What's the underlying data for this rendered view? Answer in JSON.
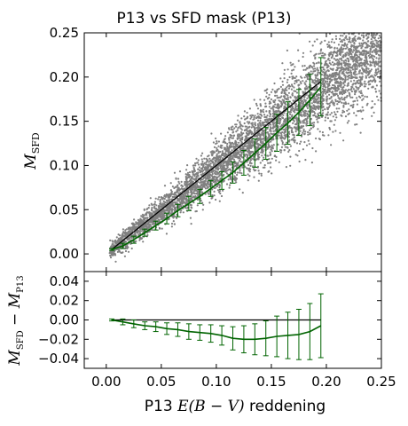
{
  "chart_data": [
    {
      "type": "scatter",
      "title": "P13 vs SFD mask (P13)",
      "xlabel": "",
      "ylabel_parts": [
        "M",
        "SFD"
      ],
      "xlim": [
        -0.02,
        0.25
      ],
      "ylim": [
        -0.02,
        0.25
      ],
      "x_ticks": [
        "0.00",
        "0.05",
        "0.10",
        "0.15",
        "0.20",
        "0.25"
      ],
      "x_tick_values": [
        0.0,
        0.05,
        0.1,
        0.15,
        0.2,
        0.25
      ],
      "y_ticks": [
        "0.00",
        "0.05",
        "0.10",
        "0.15",
        "0.20",
        "0.25"
      ],
      "y_tick_values": [
        0.0,
        0.05,
        0.1,
        0.15,
        0.2,
        0.25
      ],
      "x_tick_labels_shown": false,
      "scatter_color": "#808080",
      "reference_line": {
        "color": "#000000",
        "x": [
          0.005,
          0.195
        ],
        "y": [
          0.005,
          0.195
        ]
      },
      "binned_series": {
        "color": "#006400",
        "x": [
          0.005,
          0.015,
          0.025,
          0.035,
          0.045,
          0.055,
          0.065,
          0.075,
          0.085,
          0.095,
          0.105,
          0.115,
          0.125,
          0.135,
          0.145,
          0.155,
          0.165,
          0.175,
          0.185,
          0.195
        ],
        "y": [
          0.005,
          0.009,
          0.016,
          0.024,
          0.032,
          0.04,
          0.049,
          0.057,
          0.065,
          0.074,
          0.083,
          0.092,
          0.103,
          0.114,
          0.125,
          0.137,
          0.148,
          0.16,
          0.174,
          0.189
        ],
        "err": [
          0.001,
          0.003,
          0.004,
          0.004,
          0.005,
          0.006,
          0.007,
          0.008,
          0.008,
          0.009,
          0.01,
          0.012,
          0.014,
          0.016,
          0.018,
          0.021,
          0.024,
          0.026,
          0.029,
          0.033
        ]
      }
    },
    {
      "type": "line",
      "xlabel_prefix": "P13",
      "xlabel_math": "E(B − V)",
      "xlabel_suffix": "reddening",
      "ylabel_parts": [
        "M",
        "SFD",
        " − ",
        "M",
        "P13"
      ],
      "xlim": [
        -0.02,
        0.25
      ],
      "ylim": [
        -0.05,
        0.05
      ],
      "x_ticks": [
        "0.00",
        "0.05",
        "0.10",
        "0.15",
        "0.20",
        "0.25"
      ],
      "x_tick_values": [
        0.0,
        0.05,
        0.1,
        0.15,
        0.2,
        0.25
      ],
      "y_ticks": [
        "−0.04",
        "−0.02",
        "0.00",
        "0.02",
        "0.04"
      ],
      "y_tick_values": [
        -0.04,
        -0.02,
        0.0,
        0.02,
        0.04
      ],
      "reference_line": {
        "color": "#000000",
        "x": [
          0.005,
          0.195
        ],
        "y": [
          0.0,
          0.0
        ]
      },
      "binned_series": {
        "color": "#006400",
        "x": [
          0.005,
          0.015,
          0.025,
          0.035,
          0.045,
          0.055,
          0.065,
          0.075,
          0.085,
          0.095,
          0.105,
          0.115,
          0.125,
          0.135,
          0.145,
          0.155,
          0.165,
          0.175,
          0.185,
          0.195
        ],
        "y": [
          0.0,
          -0.002,
          -0.004,
          -0.006,
          -0.007,
          -0.009,
          -0.01,
          -0.012,
          -0.013,
          -0.014,
          -0.016,
          -0.019,
          -0.02,
          -0.02,
          -0.019,
          -0.017,
          -0.016,
          -0.015,
          -0.012,
          -0.006
        ],
        "err": [
          0.001,
          0.003,
          0.004,
          0.004,
          0.005,
          0.006,
          0.007,
          0.008,
          0.008,
          0.009,
          0.01,
          0.012,
          0.014,
          0.016,
          0.018,
          0.021,
          0.024,
          0.026,
          0.029,
          0.033
        ]
      }
    }
  ]
}
